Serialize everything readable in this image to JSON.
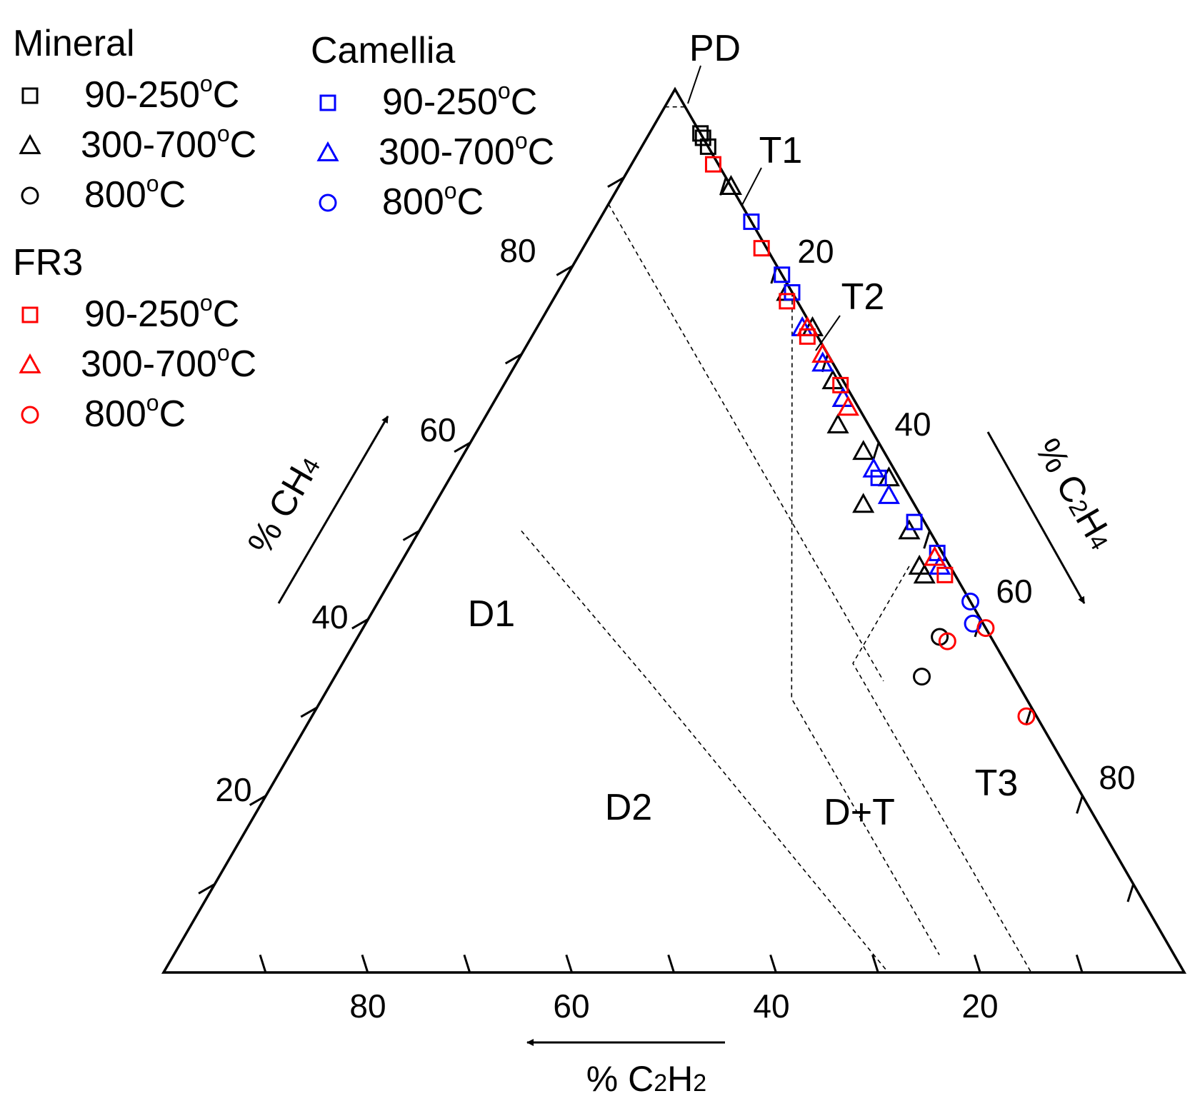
{
  "chart_data": {
    "type": "scatter",
    "subtype": "ternary (Duval triangle)",
    "title": "",
    "axes": {
      "ch4": {
        "label_prefix": "% CH",
        "label_sub": "4",
        "ticks": [
          "20",
          "40",
          "60",
          "80"
        ]
      },
      "c2h4": {
        "label_prefix": "% C",
        "label_sub1": "2",
        "label_mid": "H",
        "label_sub2": "4",
        "ticks": [
          "20",
          "40",
          "60",
          "80"
        ]
      },
      "c2h2": {
        "label_prefix": "% C",
        "label_sub1": "2",
        "label_mid": "H",
        "label_sub2": "2",
        "ticks": [
          "80",
          "60",
          "40",
          "20"
        ]
      },
      "tick_values": [
        20,
        40,
        60,
        80
      ],
      "range": [
        0,
        100
      ]
    },
    "zones": {
      "PD": "PD",
      "T1": "T1",
      "T2": "T2",
      "T3": "T3",
      "D1": "D1",
      "D2": "D2",
      "DT": "D+T"
    },
    "zone_boundaries": [
      [
        {
          "ch4": 98,
          "c2h4": 0
        },
        {
          "ch4": 98,
          "c2h4": 2
        }
      ],
      [
        {
          "ch4": 87,
          "c2h4": 0
        },
        {
          "ch4": 33,
          "c2h4": 54
        }
      ],
      [
        {
          "ch4": 96,
          "c2h4": 4
        },
        {
          "ch4": 4,
          "c2h4": 96
        }
      ],
      [
        {
          "ch4": 77,
          "c2h4": 23
        },
        {
          "ch4": 31,
          "c2h4": 46
        },
        {
          "ch4": 2,
          "c2h4": 75
        }
      ],
      [
        {
          "ch4": 50,
          "c2h4": 10
        },
        {
          "ch4": 33,
          "c2h4": 31
        },
        {
          "ch4": 0,
          "c2h4": 71
        }
      ],
      [
        {
          "ch4": 46,
          "c2h4": 50
        },
        {
          "ch4": 35,
          "c2h4": 50
        },
        {
          "ch4": 0,
          "c2h4": 85
        }
      ]
    ],
    "legend": {
      "groups": [
        {
          "title": "Mineral",
          "color": "#000000",
          "items": [
            "90-250",
            "300-700",
            "800"
          ]
        },
        {
          "title": "Camellia",
          "color": "#0000ff",
          "items": [
            "90-250",
            "300-700",
            "800"
          ]
        },
        {
          "title": "FR3",
          "color": "#ff0000",
          "items": [
            "90-250",
            "300-700",
            "800"
          ]
        }
      ],
      "degree_symbol": "o",
      "unit": "C"
    },
    "series": [
      {
        "name": "Mineral 90-250°C",
        "color": "#000000",
        "marker": "square",
        "points": [
          [
            95,
            5
          ],
          [
            94.5,
            5.5
          ],
          [
            93.5,
            6.5
          ]
        ]
      },
      {
        "name": "Mineral 300-700°C",
        "color": "#000000",
        "marker": "triangle",
        "points": [
          [
            89,
            11
          ],
          [
            77,
            22.5
          ],
          [
            73,
            27
          ],
          [
            67,
            32
          ],
          [
            65,
            34
          ],
          [
            62,
            35
          ],
          [
            59,
            39
          ],
          [
            56,
            43
          ],
          [
            53,
            42
          ],
          [
            50,
            48
          ],
          [
            46,
            51
          ],
          [
            45,
            52
          ]
        ]
      },
      {
        "name": "Mineral 800°C",
        "color": "#000000",
        "marker": "circle",
        "points": [
          [
            38,
            57
          ],
          [
            33.5,
            57.5
          ]
        ]
      },
      {
        "name": "Camellia 90-250°C",
        "color": "#0000ff",
        "marker": "square",
        "points": [
          [
            85,
            15
          ],
          [
            79,
            21
          ],
          [
            77,
            23
          ],
          [
            56,
            42
          ],
          [
            51,
            48
          ],
          [
            47.5,
            52
          ]
        ]
      },
      {
        "name": "Camellia 300-700°C",
        "color": "#0000ff",
        "marker": "triangle",
        "points": [
          [
            73,
            26
          ],
          [
            69,
            30
          ],
          [
            65,
            34
          ],
          [
            57,
            41
          ],
          [
            54,
            44
          ],
          [
            46,
            53
          ]
        ]
      },
      {
        "name": "Camellia 800°C",
        "color": "#0000ff",
        "marker": "circle",
        "points": [
          [
            42,
            58
          ],
          [
            39.5,
            59.5
          ]
        ]
      },
      {
        "name": "FR3 90-250°C",
        "color": "#ff0000",
        "marker": "square",
        "points": [
          [
            91.5,
            8
          ],
          [
            82,
            17.5
          ],
          [
            76,
            23
          ],
          [
            72,
            27
          ],
          [
            66.5,
            33
          ],
          [
            45,
            54
          ]
        ]
      },
      {
        "name": "FR3 300-700°C",
        "color": "#ff0000",
        "marker": "triangle",
        "points": [
          [
            73,
            26.5
          ],
          [
            70,
            29.5
          ],
          [
            64,
            35
          ],
          [
            47,
            52
          ]
        ]
      },
      {
        "name": "FR3 800°C",
        "color": "#ff0000",
        "marker": "circle",
        "points": [
          [
            39,
            61
          ],
          [
            37.5,
            58
          ],
          [
            29,
            70
          ]
        ]
      }
    ]
  }
}
